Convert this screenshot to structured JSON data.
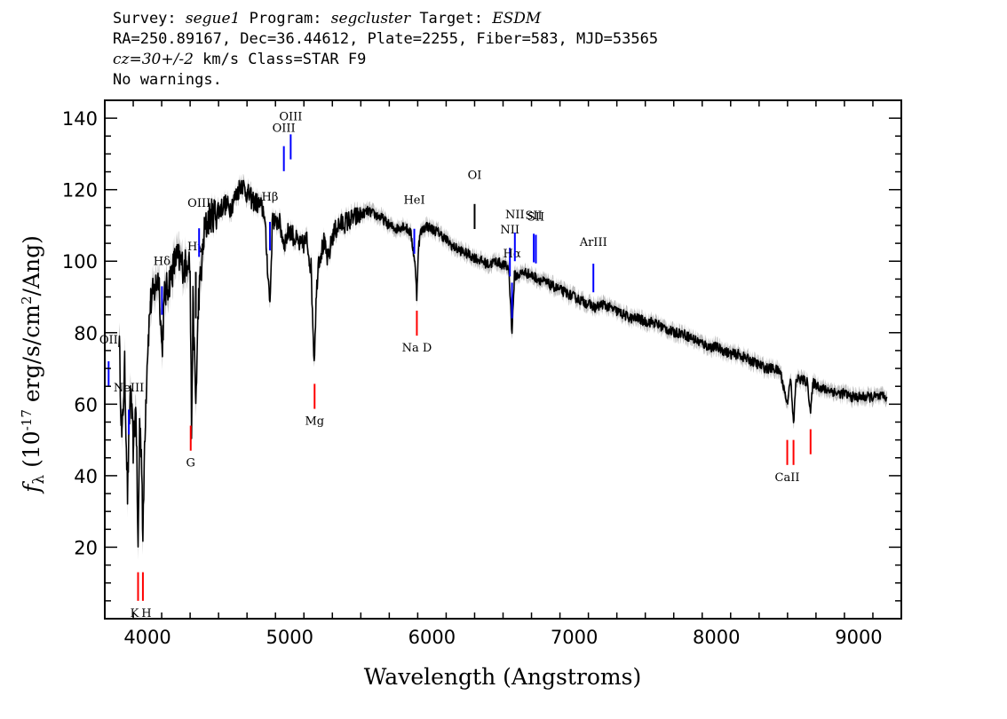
{
  "header": {
    "line1": {
      "survey_label": "Survey: ",
      "survey": "segue1",
      "program_label": " Program: ",
      "program": "segcluster",
      "target_label": " Target: ",
      "target": "ESDM"
    },
    "line2": "RA=250.89167, Dec=36.44612, Plate=2255, Fiber=583, MJD=53565",
    "line3": {
      "cz": "cz=30+/-2",
      "rest": " km/s Class=STAR F9"
    },
    "line4": "No warnings."
  },
  "chart_data": {
    "type": "line",
    "xlabel": "Wavelength (Angstroms)",
    "ylabel": "f_λ (10^-17 erg/s/cm^2/Ang)",
    "xlim": [
      3700,
      9300
    ],
    "ylim": [
      0,
      145
    ],
    "x_ticks": [
      4000,
      5000,
      6000,
      7000,
      8000,
      9000
    ],
    "y_ticks": [
      20,
      40,
      60,
      80,
      100,
      120,
      140
    ],
    "colors": {
      "flux": "#000000",
      "error_band": "#bdbdbd",
      "emission": "#0000ff",
      "absorption": "#ff0000"
    },
    "spectrum": {
      "x": [
        3800,
        3820,
        3840,
        3860,
        3880,
        3900,
        3920,
        3934,
        3945,
        3960,
        3968,
        3980,
        4000,
        4020,
        4050,
        4080,
        4102,
        4120,
        4150,
        4180,
        4200,
        4230,
        4260,
        4290,
        4300,
        4310,
        4320,
        4340,
        4360,
        4380,
        4400,
        4430,
        4460,
        4500,
        4540,
        4580,
        4620,
        4660,
        4700,
        4740,
        4780,
        4820,
        4861,
        4880,
        4900,
        4920,
        4960,
        5000,
        5040,
        5080,
        5120,
        5150,
        5172,
        5185,
        5200,
        5240,
        5270,
        5300,
        5340,
        5400,
        5450,
        5500,
        5550,
        5600,
        5650,
        5700,
        5750,
        5800,
        5850,
        5880,
        5893,
        5905,
        5920,
        5960,
        6000,
        6050,
        6100,
        6150,
        6200,
        6250,
        6300,
        6350,
        6400,
        6450,
        6500,
        6540,
        6563,
        6580,
        6600,
        6650,
        6700,
        6750,
        6800,
        6850,
        6900,
        6950,
        7000,
        7050,
        7100,
        7150,
        7200,
        7250,
        7300,
        7350,
        7400,
        7450,
        7500,
        7550,
        7600,
        7650,
        7700,
        7750,
        7800,
        7850,
        7900,
        7950,
        8000,
        8050,
        8100,
        8150,
        8200,
        8250,
        8300,
        8350,
        8400,
        8450,
        8498,
        8520,
        8542,
        8560,
        8600,
        8640,
        8662,
        8680,
        8720,
        8760,
        8800,
        8850,
        8900,
        8950,
        9000,
        9050,
        9100,
        9150,
        9200
      ],
      "y": [
        80,
        50,
        70,
        35,
        65,
        48,
        60,
        18,
        55,
        45,
        20,
        50,
        75,
        88,
        92,
        96,
        75,
        90,
        94,
        98,
        101,
        100,
        98,
        102,
        97,
        52,
        88,
        60,
        90,
        98,
        108,
        112,
        113,
        114,
        116,
        115,
        118,
        122,
        119,
        117,
        116,
        114,
        88,
        113,
        110,
        112,
        105,
        109,
        106,
        104,
        106,
        98,
        72,
        88,
        100,
        105,
        100,
        107,
        110,
        111,
        112,
        113,
        114,
        113,
        112,
        110,
        109,
        110,
        108,
        100,
        90,
        104,
        108,
        110,
        109,
        108,
        106,
        104,
        103,
        102,
        101,
        100,
        99,
        100,
        99,
        98,
        80,
        96,
        96,
        97,
        96,
        95,
        94,
        93,
        92,
        91,
        90,
        89,
        88,
        87,
        88,
        87,
        86,
        85,
        84,
        84,
        83,
        83,
        82,
        81,
        80,
        80,
        79,
        78,
        77,
        76,
        76,
        75,
        74,
        74,
        73,
        72,
        71,
        70,
        70,
        69,
        60,
        68,
        54,
        67,
        67,
        66,
        58,
        66,
        65,
        64,
        64,
        63,
        63,
        62,
        62,
        62,
        62,
        62,
        62
      ]
    },
    "emission_lines": [
      {
        "label": "OII",
        "x": 3727
      },
      {
        "label": "NeIII",
        "x": 3869
      },
      {
        "label": "Hδ",
        "x": 4102
      },
      {
        "label": "Hγ",
        "x": 4340
      },
      {
        "label": "OIII",
        "x": 4363
      },
      {
        "label": "Hβ",
        "x": 4861
      },
      {
        "label": "OIII",
        "x": 4959
      },
      {
        "label": "OIII",
        "x": 5007
      },
      {
        "label": "HeI",
        "x": 5876
      },
      {
        "label": "OI",
        "x": 6300
      },
      {
        "label": "NII",
        "x": 6548
      },
      {
        "label": "Hα",
        "x": 6563
      },
      {
        "label": "NII",
        "x": 6583
      },
      {
        "label": "SII",
        "x": 6716
      },
      {
        "label": "SII",
        "x": 6731
      },
      {
        "label": "ArIII",
        "x": 7135
      }
    ],
    "absorption_lines": [
      {
        "label": "K",
        "x": 3934
      },
      {
        "label": "H",
        "x": 3968
      },
      {
        "label": "G",
        "x": 4304
      },
      {
        "label": "Mg",
        "x": 5175
      },
      {
        "label": "Na D",
        "x": 5894
      },
      {
        "label": "CaII",
        "x": 8498
      },
      {
        "label": "CaII",
        "x": 8542
      },
      {
        "label": "CaII",
        "x": 8662
      }
    ]
  }
}
